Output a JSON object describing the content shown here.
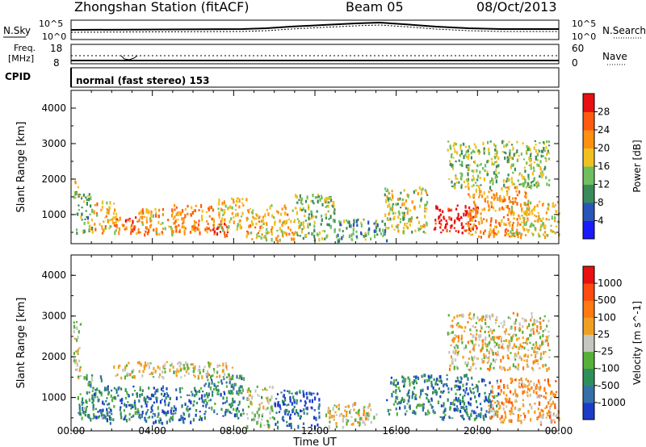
{
  "header": {
    "title": "Zhongshan Station (fitACF)",
    "beam": "Beam 05",
    "date": "08/Oct/2013"
  },
  "top_panels": {
    "nsky_label": "N.Sky",
    "nsearch_label": "N.Search",
    "noise_ticks": [
      "10^5",
      "10^0"
    ],
    "freq_label_1": "Freq.",
    "freq_label_2": "[MHz]",
    "freq_ticks": [
      "18",
      "8"
    ],
    "nave_label": "Nave",
    "nave_ticks": [
      "60",
      "0"
    ],
    "cpid_label": "CPID",
    "cpid_text": "normal (fast stereo) 153"
  },
  "x_axis": {
    "label": "Time UT",
    "ticks": [
      "00:00",
      "04:00",
      "08:00",
      "12:00",
      "16:00",
      "20:00",
      "00:00"
    ]
  },
  "colors": {
    "white": "#ffffff",
    "black": "#000000",
    "power_scale": [
      "#1a1aff",
      "#2a55b8",
      "#3a8a5a",
      "#6fbf5f",
      "#f0c020",
      "#ff8f10",
      "#ff5a10",
      "#e81010"
    ],
    "velocity_scale": [
      "#1a3cc8",
      "#3470a8",
      "#2f8f5a",
      "#57b03a",
      "#c6c6c0",
      "#f0a020",
      "#ff7a10",
      "#ff4a10",
      "#e81010"
    ]
  },
  "chart_data": [
    {
      "type": "heatmap",
      "title": "Power",
      "xlabel": "Time UT",
      "ylabel": "Slant Range [km]",
      "xlim": [
        "00:00",
        "24:00"
      ],
      "ylim": [
        180,
        4500
      ],
      "yticks": [
        1000,
        2000,
        3000,
        4000
      ],
      "colorbar": {
        "label": "Power [dB]",
        "ticks": [
          "4",
          "8",
          "12",
          "16",
          "20",
          "24",
          "28"
        ],
        "range": [
          0,
          30
        ]
      },
      "regions": [
        {
          "t": [
            0.1,
            0.4
          ],
          "r": [
            1400,
            2000
          ],
          "level": 0.55
        },
        {
          "t": [
            0.2,
            1.0
          ],
          "r": [
            500,
            1700
          ],
          "level": 0.4
        },
        {
          "t": [
            1.0,
            2.2
          ],
          "r": [
            500,
            1400
          ],
          "level": 0.6
        },
        {
          "t": [
            2.0,
            3.5
          ],
          "r": [
            500,
            1000
          ],
          "level": 0.75
        },
        {
          "t": [
            3.3,
            5.6
          ],
          "r": [
            450,
            1200
          ],
          "level": 0.65
        },
        {
          "t": [
            5.0,
            7.0
          ],
          "r": [
            500,
            1300
          ],
          "level": 0.7
        },
        {
          "t": [
            6.8,
            7.7
          ],
          "r": [
            400,
            850
          ],
          "level": 0.95
        },
        {
          "t": [
            7.2,
            8.6
          ],
          "r": [
            600,
            1500
          ],
          "level": 0.55
        },
        {
          "t": [
            8.6,
            11.0
          ],
          "r": [
            300,
            1300
          ],
          "level": 0.6
        },
        {
          "t": [
            11.0,
            13.0
          ],
          "r": [
            300,
            1600
          ],
          "level": 0.45
        },
        {
          "t": [
            13.0,
            15.5
          ],
          "r": [
            300,
            900
          ],
          "level": 0.35
        },
        {
          "t": [
            15.4,
            17.5
          ],
          "r": [
            500,
            1800
          ],
          "level": 0.5
        },
        {
          "t": [
            17.8,
            20.0
          ],
          "r": [
            500,
            1300
          ],
          "level": 0.98
        },
        {
          "t": [
            19.5,
            22.5
          ],
          "r": [
            400,
            1800
          ],
          "level": 0.7
        },
        {
          "t": [
            21.5,
            24.0
          ],
          "r": [
            400,
            1400
          ],
          "level": 0.55
        },
        {
          "t": [
            18.5,
            23.5
          ],
          "r": [
            1800,
            3100
          ],
          "level": 0.45
        }
      ]
    },
    {
      "type": "heatmap",
      "title": "Velocity",
      "xlabel": "Time UT",
      "ylabel": "Slant Range [km]",
      "xlim": [
        "00:00",
        "24:00"
      ],
      "ylim": [
        180,
        4500
      ],
      "yticks": [
        1000,
        2000,
        3000,
        4000
      ],
      "colorbar": {
        "label": "Velocity [m s^-1]",
        "ticks": [
          "1000",
          "500",
          "100",
          "25",
          "-25",
          "-100",
          "-500",
          "-1000"
        ],
        "range": [
          -1000,
          1000
        ]
      },
      "regions": [
        {
          "t": [
            0.1,
            0.5
          ],
          "r": [
            1500,
            2900
          ],
          "level": 0.5
        },
        {
          "t": [
            0.3,
            1.5
          ],
          "r": [
            500,
            1600
          ],
          "level": 0.3
        },
        {
          "t": [
            1.0,
            6.5
          ],
          "r": [
            400,
            1300
          ],
          "level": 0.2
        },
        {
          "t": [
            6.5,
            8.5
          ],
          "r": [
            500,
            1600
          ],
          "level": 0.25
        },
        {
          "t": [
            2.0,
            8.0
          ],
          "r": [
            1500,
            1900
          ],
          "level": 0.5
        },
        {
          "t": [
            8.6,
            10.0
          ],
          "r": [
            300,
            1300
          ],
          "level": 0.45
        },
        {
          "t": [
            10.0,
            12.2
          ],
          "r": [
            300,
            1200
          ],
          "level": 0.1
        },
        {
          "t": [
            12.5,
            15.0
          ],
          "r": [
            300,
            900
          ],
          "level": 0.55
        },
        {
          "t": [
            15.5,
            18.0
          ],
          "r": [
            600,
            1600
          ],
          "level": 0.25
        },
        {
          "t": [
            18.0,
            21.0
          ],
          "r": [
            500,
            1600
          ],
          "level": 0.2
        },
        {
          "t": [
            20.5,
            24.0
          ],
          "r": [
            400,
            1500
          ],
          "level": 0.65
        },
        {
          "t": [
            18.5,
            23.5
          ],
          "r": [
            1700,
            3100
          ],
          "level": 0.55
        }
      ]
    }
  ]
}
